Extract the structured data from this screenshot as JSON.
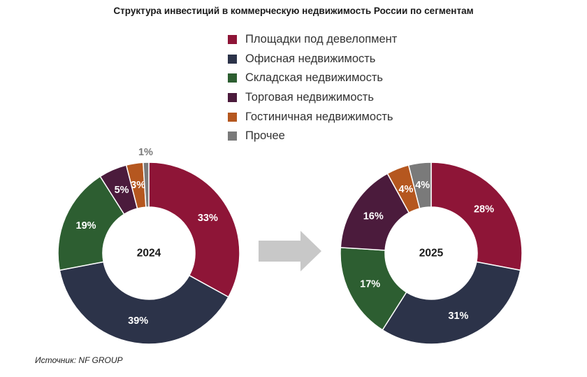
{
  "title": "Структура инвестиций в коммерческую недвижимость России по сегментам",
  "source": "Источник: NF GROUP",
  "colors": {
    "development": "#8e1537",
    "office": "#2c3349",
    "warehouse": "#2d5e31",
    "retail": "#4b1b3c",
    "hotel": "#b5571f",
    "other": "#7a7a7a"
  },
  "legend": [
    {
      "label": "Площадки под девелопмент",
      "color": "#8e1537"
    },
    {
      "label": "Офисная недвижимость",
      "color": "#2c3349"
    },
    {
      "label": "Складская недвижимость",
      "color": "#2d5e31"
    },
    {
      "label": "Торговая недвижимость",
      "color": "#4b1b3c"
    },
    {
      "label": "Гостиничная недвижимость",
      "color": "#b5571f"
    },
    {
      "label": "Прочее",
      "color": "#7a7a7a"
    }
  ],
  "chart_data": [
    {
      "type": "pie",
      "center_label": "2024",
      "categories": [
        "Площадки под девелопмент",
        "Офисная недвижимость",
        "Складская недвижимость",
        "Торговая недвижимость",
        "Гостиничная недвижимость",
        "Прочее"
      ],
      "values": [
        33,
        39,
        19,
        5,
        3,
        1
      ],
      "labels": [
        "33%",
        "39%",
        "19%",
        "5%",
        "3%",
        "1%"
      ],
      "colors": [
        "#8e1537",
        "#2c3349",
        "#2d5e31",
        "#4b1b3c",
        "#b5571f",
        "#7a7a7a"
      ]
    },
    {
      "type": "pie",
      "center_label": "2025",
      "categories": [
        "Площадки под девелопмент",
        "Офисная недвижимость",
        "Складская недвижимость",
        "Торговая недвижимость",
        "Гостиничная недвижимость",
        "Прочее"
      ],
      "values": [
        28,
        31,
        17,
        16,
        4,
        4
      ],
      "labels": [
        "28%",
        "31%",
        "17%",
        "16%",
        "4%",
        "4%"
      ],
      "colors": [
        "#8e1537",
        "#2c3349",
        "#2d5e31",
        "#4b1b3c",
        "#b5571f",
        "#7a7a7a"
      ]
    }
  ]
}
